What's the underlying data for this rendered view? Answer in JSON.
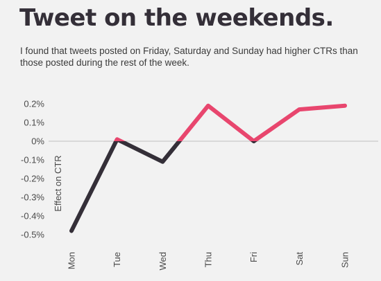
{
  "header": {
    "title": "Tweet on the weekends.",
    "subtitle": "I found that tweets posted on Friday, Saturday and Sunday had higher CTRs than those posted during the rest of the week."
  },
  "colors": {
    "background": "#f2f2f2",
    "title": "#342f38",
    "dark_line": "#342f38",
    "pink_line": "#e8466e",
    "zero_line": "#bdbdbd"
  },
  "chart_data": {
    "type": "line",
    "categories": [
      "Mon",
      "Tue",
      "Wed",
      "Thu",
      "Fri",
      "Sat",
      "Sun"
    ],
    "values": [
      -0.48,
      0.01,
      -0.11,
      0.19,
      0.0,
      0.17,
      0.19
    ],
    "ylabel": "Effect on CTR",
    "xlabel": "",
    "ylim": [
      -0.5,
      0.2
    ],
    "y_ticks": [
      "0.2%",
      "0.1%",
      "0%",
      "-0.1%",
      "-0.2%",
      "-0.3%",
      "-0.4%",
      "-0.5%"
    ],
    "y_tick_values": [
      0.2,
      0.1,
      0.0,
      -0.1,
      -0.2,
      -0.3,
      -0.4,
      -0.5
    ],
    "x_tick_rotation": "vertical",
    "grid": false,
    "reference_line": 0,
    "color_rule": "pink above zero, dark below zero"
  }
}
